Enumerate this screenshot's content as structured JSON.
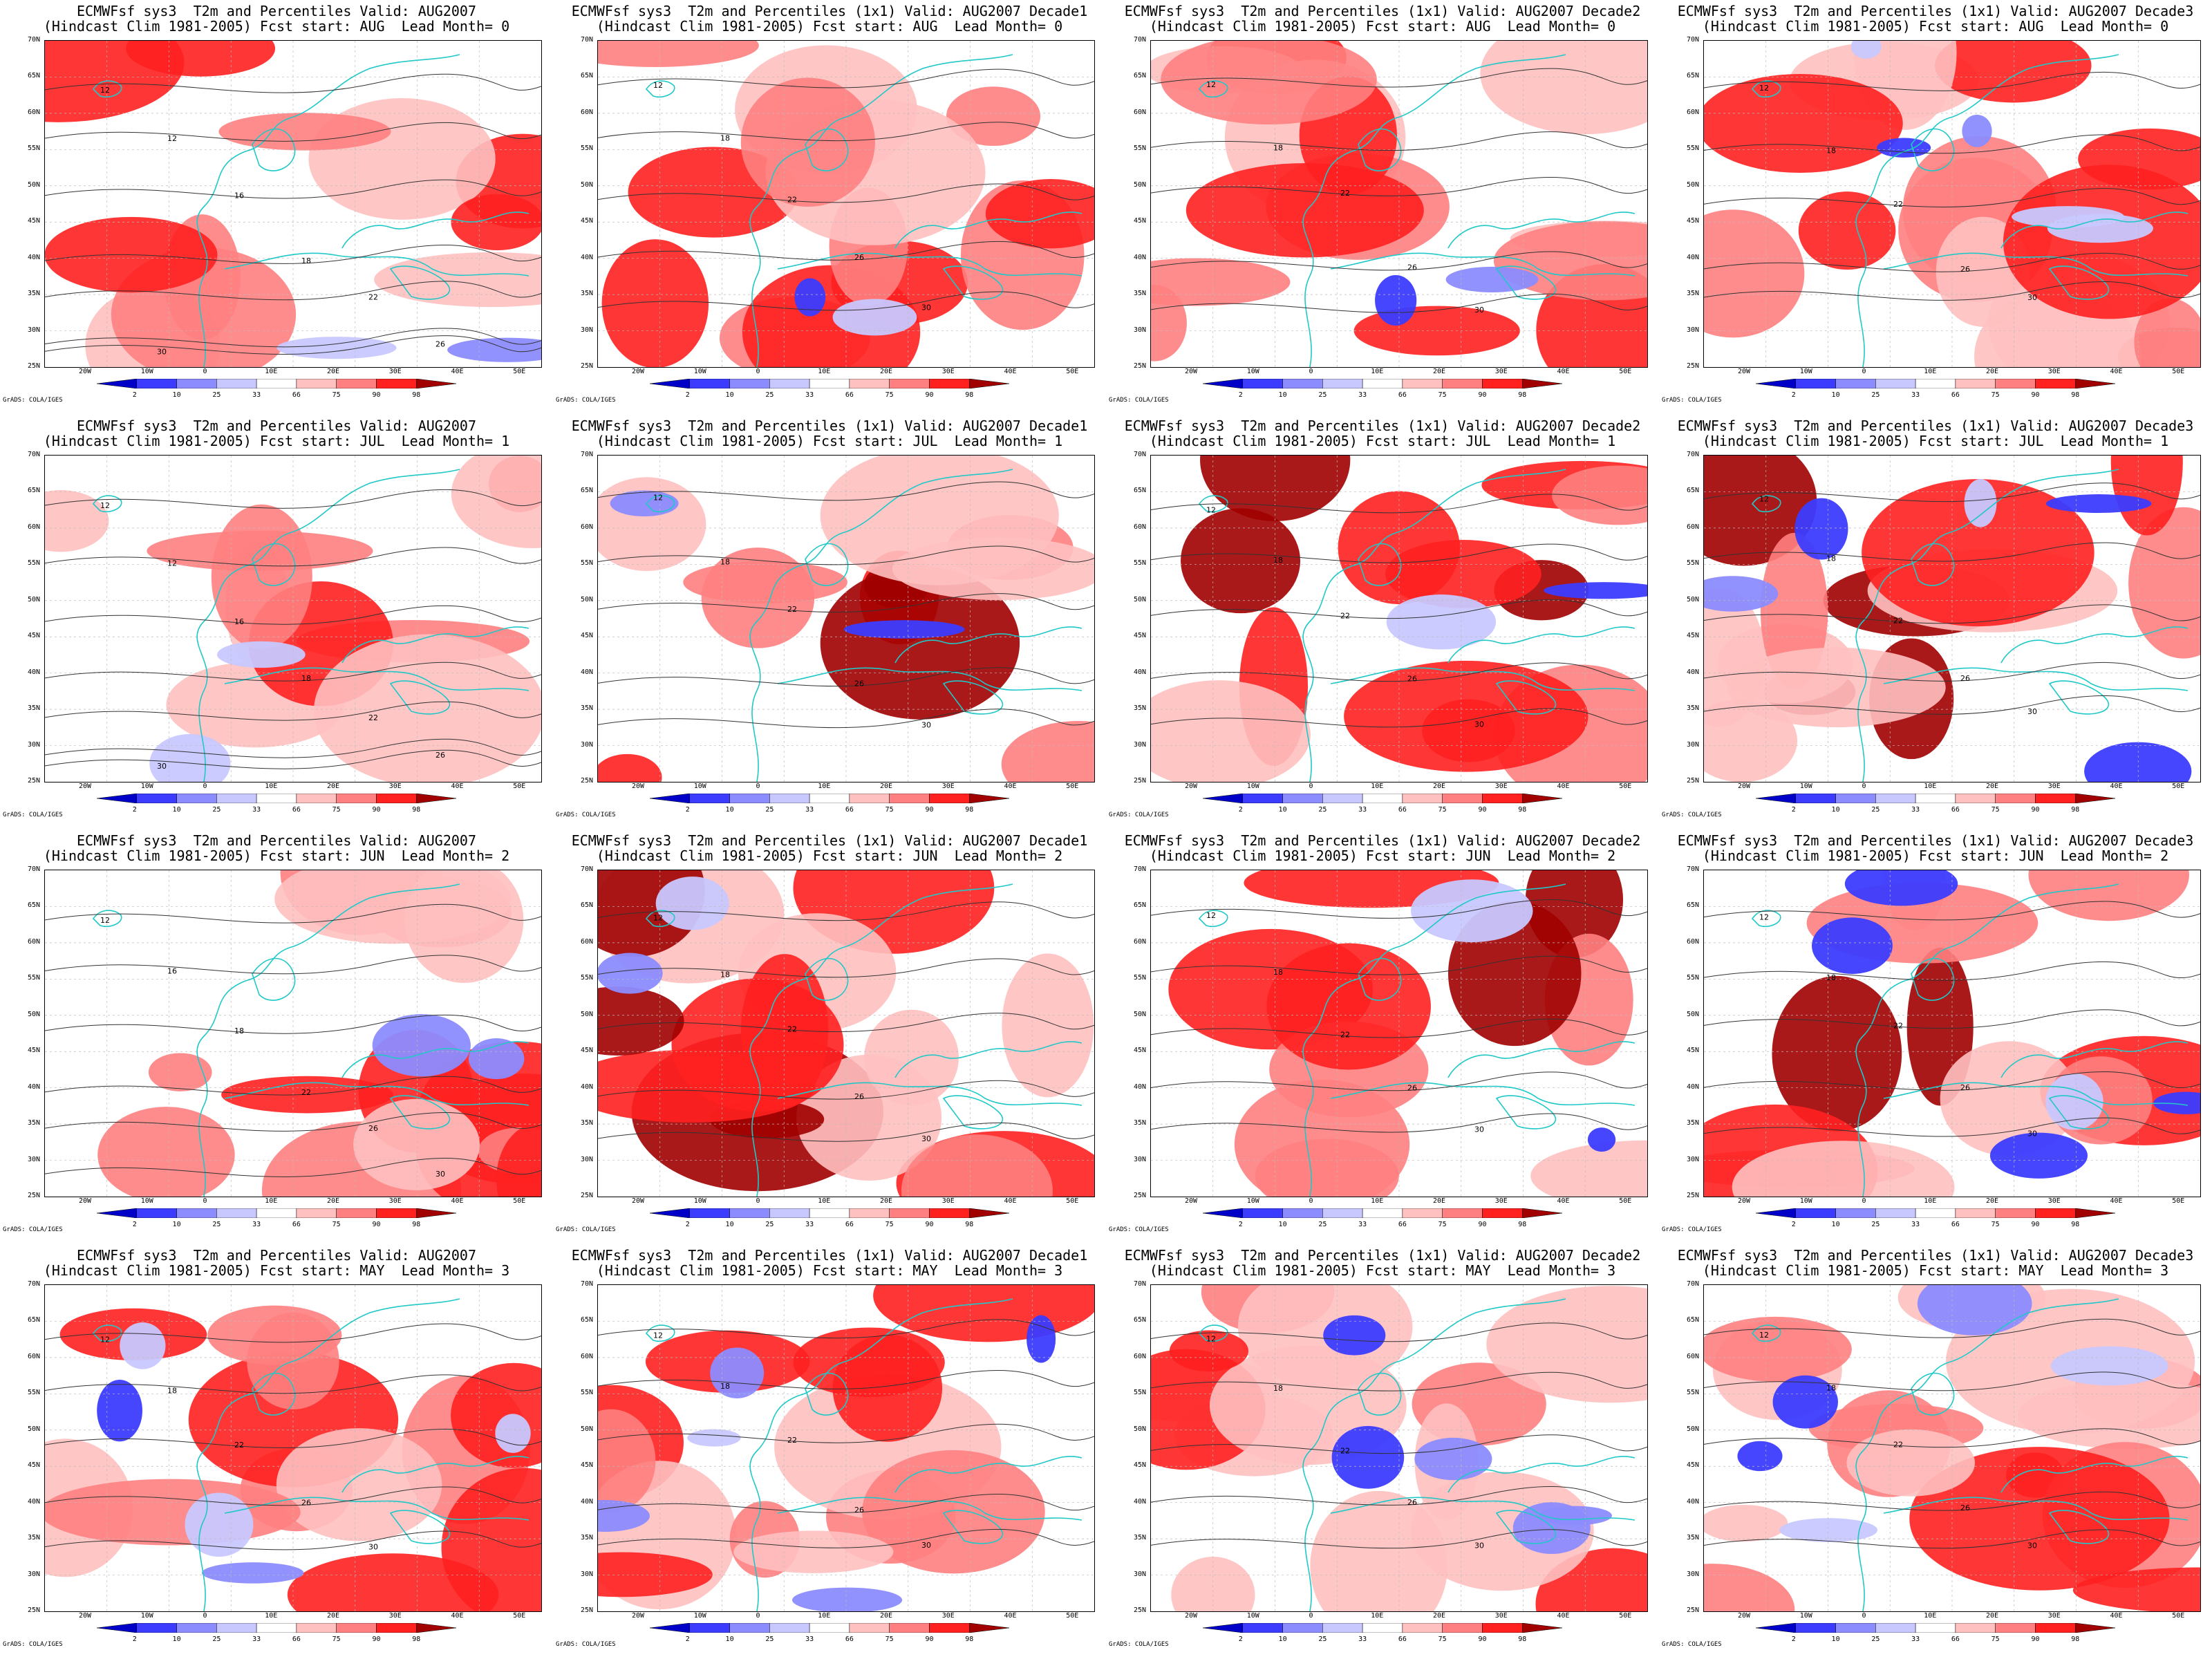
{
  "rows": [
    {
      "title2": "(Hindcast Clim 1981-2005) Fcst start: AUG  Lead Month= 0",
      "panels": [
        {
          "title1": "ECMWFsf sys3  T2m and Percentiles Valid: AUG2007",
          "contours": [
            "12",
            "12",
            "16",
            "18",
            "22",
            "26",
            "30"
          ]
        },
        {
          "title1": "ECMWFsf sys3  T2m and Percentiles (1x1) Valid: AUG2007 Decade1",
          "contours": [
            "12",
            "18",
            "22",
            "26",
            "30"
          ]
        },
        {
          "title1": "ECMWFsf sys3  T2m and Percentiles (1x1) Valid: AUG2007 Decade2",
          "contours": [
            "12",
            "18",
            "22",
            "26",
            "30"
          ]
        },
        {
          "title1": "ECMWFsf sys3  T2m and Percentiles (1x1) Valid: AUG2007 Decade3",
          "contours": [
            "12",
            "18",
            "22",
            "26",
            "30"
          ]
        }
      ]
    },
    {
      "title2": "(Hindcast Clim 1981-2005) Fcst start: JUL  Lead Month= 1",
      "panels": [
        {
          "title1": "ECMWFsf sys3  T2m and Percentiles Valid: AUG2007",
          "contours": [
            "12",
            "12",
            "16",
            "18",
            "22",
            "26",
            "30"
          ]
        },
        {
          "title1": "ECMWFsf sys3  T2m and Percentiles (1x1) Valid: AUG2007 Decade1",
          "contours": [
            "12",
            "18",
            "22",
            "26",
            "30"
          ]
        },
        {
          "title1": "ECMWFsf sys3  T2m and Percentiles (1x1) Valid: AUG2007 Decade2",
          "contours": [
            "12",
            "18",
            "22",
            "26",
            "30"
          ]
        },
        {
          "title1": "ECMWFsf sys3  T2m and Percentiles (1x1) Valid: AUG2007 Decade3",
          "contours": [
            "12",
            "18",
            "22",
            "26",
            "30"
          ]
        }
      ]
    },
    {
      "title2": "(Hindcast Clim 1981-2005) Fcst start: JUN  Lead Month= 2",
      "panels": [
        {
          "title1": "ECMWFsf sys3  T2m and Percentiles Valid: AUG2007",
          "contours": [
            "12",
            "16",
            "18",
            "22",
            "26",
            "30"
          ]
        },
        {
          "title1": "ECMWFsf sys3  T2m and Percentiles (1x1) Valid: AUG2007 Decade1",
          "contours": [
            "12",
            "18",
            "22",
            "26",
            "30"
          ]
        },
        {
          "title1": "ECMWFsf sys3  T2m and Percentiles (1x1) Valid: AUG2007 Decade2",
          "contours": [
            "12",
            "18",
            "22",
            "26",
            "30"
          ]
        },
        {
          "title1": "ECMWFsf sys3  T2m and Percentiles (1x1) Valid: AUG2007 Decade3",
          "contours": [
            "12",
            "18",
            "22",
            "26",
            "30"
          ]
        }
      ]
    },
    {
      "title2": "(Hindcast Clim 1981-2005) Fcst start: MAY  Lead Month= 3",
      "panels": [
        {
          "title1": "ECMWFsf sys3  T2m and Percentiles Valid: AUG2007",
          "contours": [
            "12",
            "18",
            "22",
            "26",
            "30"
          ]
        },
        {
          "title1": "ECMWFsf sys3  T2m and Percentiles (1x1) Valid: AUG2007 Decade1",
          "contours": [
            "12",
            "18",
            "22",
            "26",
            "30"
          ]
        },
        {
          "title1": "ECMWFsf sys3  T2m and Percentiles (1x1) Valid: AUG2007 Decade2",
          "contours": [
            "12",
            "18",
            "22",
            "26",
            "30"
          ]
        },
        {
          "title1": "ECMWFsf sys3  T2m and Percentiles (1x1) Valid: AUG2007 Decade3",
          "contours": [
            "12",
            "18",
            "22",
            "26",
            "30"
          ]
        }
      ]
    }
  ],
  "lat_labels": [
    "70N",
    "65N",
    "60N",
    "55N",
    "50N",
    "45N",
    "40N",
    "35N",
    "30N",
    "25N"
  ],
  "lon_labels": [
    "20W",
    "10W",
    "0",
    "10E",
    "20E",
    "30E",
    "40E",
    "50E"
  ],
  "colorbar": {
    "ticks": [
      "2",
      "10",
      "25",
      "33",
      "66",
      "75",
      "90",
      "98"
    ],
    "colors": [
      "#0000c8",
      "#3c3cff",
      "#8c8cff",
      "#c8c8ff",
      "#ffffff",
      "#ffc0c0",
      "#ff8080",
      "#ff2020",
      "#a00000"
    ]
  },
  "credit": "GrADS: COLA/IGES",
  "colors": {
    "coast": "#20c8c8",
    "contour": "#333333"
  }
}
